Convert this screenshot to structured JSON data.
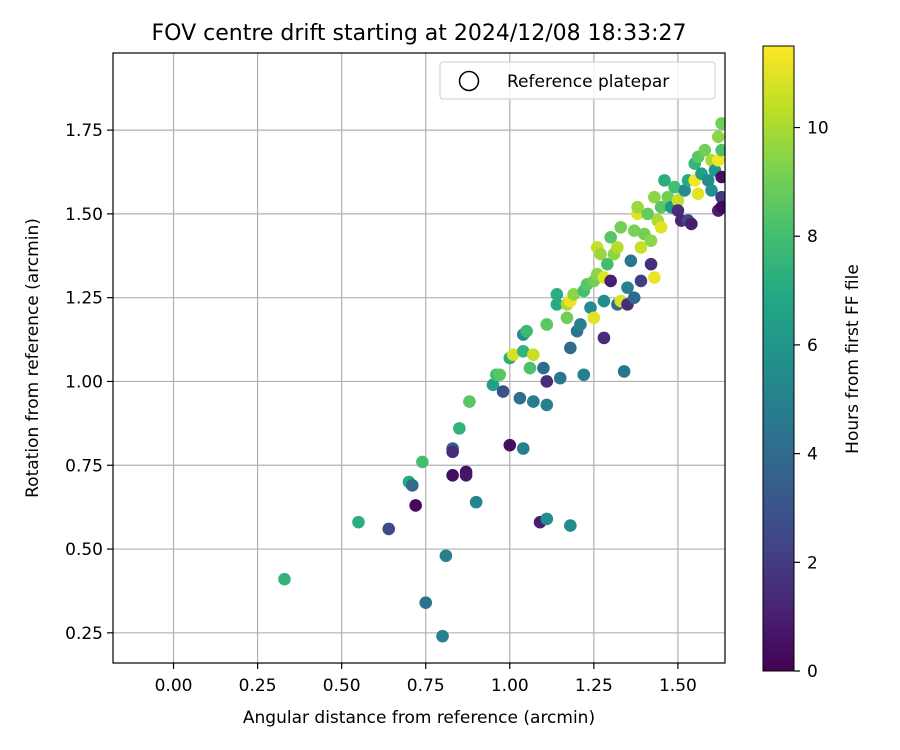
{
  "chart_data": {
    "type": "scatter",
    "title": "FOV centre drift starting at 2024/12/08 18:33:27",
    "xlabel": "Angular distance from reference (arcmin)",
    "ylabel": "Rotation from reference (arcmin)",
    "xlim": [
      -0.18,
      1.64
    ],
    "ylim": [
      0.16,
      1.98
    ],
    "xticks": [
      "0.00",
      "0.25",
      "0.50",
      "0.75",
      "1.00",
      "1.25",
      "1.50"
    ],
    "xtick_values": [
      0.0,
      0.25,
      0.5,
      0.75,
      1.0,
      1.25,
      1.5
    ],
    "yticks": [
      "0.25",
      "0.50",
      "0.75",
      "1.00",
      "1.25",
      "1.50",
      "1.75"
    ],
    "ytick_values": [
      0.25,
      0.5,
      0.75,
      1.0,
      1.25,
      1.5,
      1.75
    ],
    "grid": true,
    "legend": {
      "placement": "top-right",
      "entries": [
        "Reference platepar"
      ]
    },
    "colorbar": {
      "label": "Hours from first FF file",
      "colormap": "viridis",
      "range": [
        0,
        11.5
      ],
      "ticks": [
        "0",
        "2",
        "4",
        "6",
        "8",
        "10"
      ],
      "tick_values": [
        0,
        2,
        4,
        6,
        8,
        10
      ]
    },
    "points": [
      {
        "x": 0.33,
        "y": 0.41,
        "c": 7.5
      },
      {
        "x": 0.55,
        "y": 0.58,
        "c": 7.2
      },
      {
        "x": 0.64,
        "y": 0.56,
        "c": 2.5
      },
      {
        "x": 0.7,
        "y": 0.7,
        "c": 7.0
      },
      {
        "x": 0.71,
        "y": 0.69,
        "c": 4.0
      },
      {
        "x": 0.72,
        "y": 0.63,
        "c": 0.3
      },
      {
        "x": 0.74,
        "y": 0.76,
        "c": 8.0
      },
      {
        "x": 0.75,
        "y": 0.34,
        "c": 4.3
      },
      {
        "x": 0.8,
        "y": 0.24,
        "c": 5.0
      },
      {
        "x": 0.81,
        "y": 0.48,
        "c": 5.0
      },
      {
        "x": 0.83,
        "y": 0.8,
        "c": 3.5
      },
      {
        "x": 0.83,
        "y": 0.79,
        "c": 1.5
      },
      {
        "x": 0.83,
        "y": 0.72,
        "c": 0.4
      },
      {
        "x": 0.87,
        "y": 0.73,
        "c": 0.5
      },
      {
        "x": 0.87,
        "y": 0.72,
        "c": 0.7
      },
      {
        "x": 0.85,
        "y": 0.86,
        "c": 7.5
      },
      {
        "x": 0.88,
        "y": 0.94,
        "c": 8.5
      },
      {
        "x": 0.9,
        "y": 0.64,
        "c": 5.2
      },
      {
        "x": 0.95,
        "y": 0.99,
        "c": 6.5
      },
      {
        "x": 0.96,
        "y": 1.02,
        "c": 8.0
      },
      {
        "x": 0.97,
        "y": 1.02,
        "c": 8.5
      },
      {
        "x": 0.98,
        "y": 0.97,
        "c": 3.0
      },
      {
        "x": 1.0,
        "y": 1.07,
        "c": 7.2
      },
      {
        "x": 1.0,
        "y": 0.81,
        "c": 0.5
      },
      {
        "x": 1.01,
        "y": 1.08,
        "c": 10.8
      },
      {
        "x": 1.03,
        "y": 0.95,
        "c": 4.2
      },
      {
        "x": 1.04,
        "y": 1.09,
        "c": 7.5
      },
      {
        "x": 1.04,
        "y": 0.8,
        "c": 5.0
      },
      {
        "x": 1.04,
        "y": 1.14,
        "c": 5.5
      },
      {
        "x": 1.05,
        "y": 1.15,
        "c": 7.8
      },
      {
        "x": 1.06,
        "y": 1.04,
        "c": 8.2
      },
      {
        "x": 1.07,
        "y": 0.94,
        "c": 4.8
      },
      {
        "x": 1.07,
        "y": 1.08,
        "c": 10.5
      },
      {
        "x": 1.09,
        "y": 0.58,
        "c": 1.0
      },
      {
        "x": 1.1,
        "y": 1.04,
        "c": 4.0
      },
      {
        "x": 1.11,
        "y": 1.0,
        "c": 1.5
      },
      {
        "x": 1.11,
        "y": 0.93,
        "c": 5.0
      },
      {
        "x": 1.11,
        "y": 0.59,
        "c": 5.5
      },
      {
        "x": 1.11,
        "y": 1.17,
        "c": 8.5
      },
      {
        "x": 1.14,
        "y": 1.23,
        "c": 7.0
      },
      {
        "x": 1.14,
        "y": 1.26,
        "c": 7.2
      },
      {
        "x": 1.15,
        "y": 1.01,
        "c": 4.5
      },
      {
        "x": 1.17,
        "y": 1.19,
        "c": 9.0
      },
      {
        "x": 1.17,
        "y": 1.23,
        "c": 10.0
      },
      {
        "x": 1.18,
        "y": 1.24,
        "c": 11.2
      },
      {
        "x": 1.18,
        "y": 1.1,
        "c": 4.0
      },
      {
        "x": 1.18,
        "y": 0.57,
        "c": 5.5
      },
      {
        "x": 1.19,
        "y": 1.26,
        "c": 9.5
      },
      {
        "x": 1.2,
        "y": 1.15,
        "c": 4.5
      },
      {
        "x": 1.21,
        "y": 1.17,
        "c": 5.0
      },
      {
        "x": 1.22,
        "y": 1.02,
        "c": 5.0
      },
      {
        "x": 1.22,
        "y": 1.27,
        "c": 8.0
      },
      {
        "x": 1.23,
        "y": 1.29,
        "c": 8.5
      },
      {
        "x": 1.24,
        "y": 1.22,
        "c": 5.5
      },
      {
        "x": 1.25,
        "y": 1.19,
        "c": 11.0
      },
      {
        "x": 1.25,
        "y": 1.3,
        "c": 9.0
      },
      {
        "x": 1.26,
        "y": 1.32,
        "c": 9.5
      },
      {
        "x": 1.26,
        "y": 1.4,
        "c": 10.5
      },
      {
        "x": 1.27,
        "y": 1.38,
        "c": 9.8
      },
      {
        "x": 1.28,
        "y": 1.13,
        "c": 1.5
      },
      {
        "x": 1.28,
        "y": 1.24,
        "c": 5.5
      },
      {
        "x": 1.28,
        "y": 1.31,
        "c": 11.0
      },
      {
        "x": 1.29,
        "y": 1.35,
        "c": 8.0
      },
      {
        "x": 1.3,
        "y": 1.43,
        "c": 8.5
      },
      {
        "x": 1.3,
        "y": 1.3,
        "c": 1.0
      },
      {
        "x": 1.31,
        "y": 1.38,
        "c": 9.5
      },
      {
        "x": 1.32,
        "y": 1.23,
        "c": 4.2
      },
      {
        "x": 1.32,
        "y": 1.4,
        "c": 10.2
      },
      {
        "x": 1.33,
        "y": 1.24,
        "c": 10.8
      },
      {
        "x": 1.33,
        "y": 1.46,
        "c": 9.0
      },
      {
        "x": 1.34,
        "y": 1.03,
        "c": 4.5
      },
      {
        "x": 1.35,
        "y": 1.28,
        "c": 5.0
      },
      {
        "x": 1.35,
        "y": 1.23,
        "c": 1.5
      },
      {
        "x": 1.36,
        "y": 1.36,
        "c": 4.5
      },
      {
        "x": 1.37,
        "y": 1.45,
        "c": 9.2
      },
      {
        "x": 1.37,
        "y": 1.25,
        "c": 4.0
      },
      {
        "x": 1.38,
        "y": 1.5,
        "c": 11.0
      },
      {
        "x": 1.38,
        "y": 1.52,
        "c": 9.8
      },
      {
        "x": 1.39,
        "y": 1.4,
        "c": 10.5
      },
      {
        "x": 1.39,
        "y": 1.3,
        "c": 2.0
      },
      {
        "x": 1.4,
        "y": 1.44,
        "c": 9.0
      },
      {
        "x": 1.41,
        "y": 1.5,
        "c": 8.8
      },
      {
        "x": 1.42,
        "y": 1.42,
        "c": 9.5
      },
      {
        "x": 1.42,
        "y": 1.35,
        "c": 1.5
      },
      {
        "x": 1.43,
        "y": 1.55,
        "c": 9.5
      },
      {
        "x": 1.43,
        "y": 1.31,
        "c": 11.2
      },
      {
        "x": 1.44,
        "y": 1.48,
        "c": 10.0
      },
      {
        "x": 1.45,
        "y": 1.52,
        "c": 8.5
      },
      {
        "x": 1.45,
        "y": 1.46,
        "c": 11.0
      },
      {
        "x": 1.46,
        "y": 1.6,
        "c": 7.2
      },
      {
        "x": 1.47,
        "y": 1.55,
        "c": 9.0
      },
      {
        "x": 1.48,
        "y": 1.52,
        "c": 6.0
      },
      {
        "x": 1.49,
        "y": 1.58,
        "c": 8.0
      },
      {
        "x": 1.5,
        "y": 1.54,
        "c": 10.5
      },
      {
        "x": 1.5,
        "y": 1.51,
        "c": 1.5
      },
      {
        "x": 1.51,
        "y": 1.48,
        "c": 1.2
      },
      {
        "x": 1.52,
        "y": 1.57,
        "c": 5.5
      },
      {
        "x": 1.53,
        "y": 1.6,
        "c": 7.0
      },
      {
        "x": 1.53,
        "y": 1.48,
        "c": 2.5
      },
      {
        "x": 1.54,
        "y": 1.47,
        "c": 1.0
      },
      {
        "x": 1.55,
        "y": 1.6,
        "c": 11.3
      },
      {
        "x": 1.55,
        "y": 1.65,
        "c": 7.5
      },
      {
        "x": 1.56,
        "y": 1.67,
        "c": 8.5
      },
      {
        "x": 1.56,
        "y": 1.56,
        "c": 11.0
      },
      {
        "x": 1.57,
        "y": 1.62,
        "c": 6.5
      },
      {
        "x": 1.58,
        "y": 1.69,
        "c": 9.0
      },
      {
        "x": 1.59,
        "y": 1.6,
        "c": 5.5
      },
      {
        "x": 1.6,
        "y": 1.66,
        "c": 10.0
      },
      {
        "x": 1.6,
        "y": 1.57,
        "c": 5.8
      },
      {
        "x": 1.61,
        "y": 1.63,
        "c": 6.0
      },
      {
        "x": 1.62,
        "y": 1.73,
        "c": 9.5
      },
      {
        "x": 1.62,
        "y": 1.51,
        "c": 1.0
      },
      {
        "x": 1.62,
        "y": 1.66,
        "c": 11.3
      },
      {
        "x": 1.63,
        "y": 1.69,
        "c": 8.2
      },
      {
        "x": 1.63,
        "y": 1.61,
        "c": 0.5
      },
      {
        "x": 1.63,
        "y": 1.55,
        "c": 2.0
      },
      {
        "x": 1.63,
        "y": 1.77,
        "c": 9.0
      },
      {
        "x": 1.63,
        "y": 1.52,
        "c": 0.3
      }
    ]
  }
}
